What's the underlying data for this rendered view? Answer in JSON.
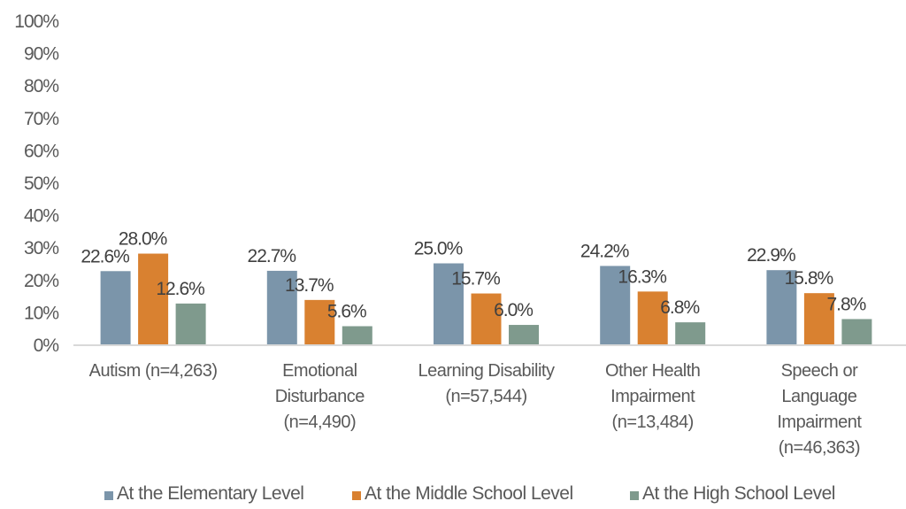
{
  "chart_data": {
    "type": "bar",
    "title": "",
    "xlabel": "",
    "ylabel": "",
    "ylim": [
      0,
      100
    ],
    "y_ticks": [
      "0%",
      "10%",
      "20%",
      "30%",
      "40%",
      "50%",
      "60%",
      "70%",
      "80%",
      "90%",
      "100%"
    ],
    "grid": false,
    "legend_position": "bottom",
    "categories": [
      [
        "Autism (n=4,263)"
      ],
      [
        "Emotional",
        "Disturbance",
        "(n=4,490)"
      ],
      [
        "Learning Disability",
        "(n=57,544)"
      ],
      [
        "Other Health",
        "Impairment",
        "(n=13,484)"
      ],
      [
        "Speech or",
        "Language",
        "Impairment",
        "(n=46,363)"
      ]
    ],
    "series": [
      {
        "name": "At the Elementary Level",
        "color": "#7b95aa",
        "values": [
          22.6,
          22.7,
          25.0,
          24.2,
          22.9
        ],
        "labels": [
          "22.6%",
          "22.7%",
          "25.0%",
          "24.2%",
          "22.9%"
        ]
      },
      {
        "name": "At the Middle School Level",
        "color": "#d98130",
        "values": [
          28.0,
          13.7,
          15.7,
          16.3,
          15.8
        ],
        "labels": [
          "28.0%",
          "13.7%",
          "15.7%",
          "16.3%",
          "15.8%"
        ]
      },
      {
        "name": "At the High School Level",
        "color": "#7f9a8d",
        "values": [
          12.6,
          5.6,
          6.0,
          6.8,
          7.8
        ],
        "labels": [
          "12.6%",
          "5.6%",
          "6.0%",
          "6.8%",
          "7.8%"
        ]
      }
    ]
  }
}
